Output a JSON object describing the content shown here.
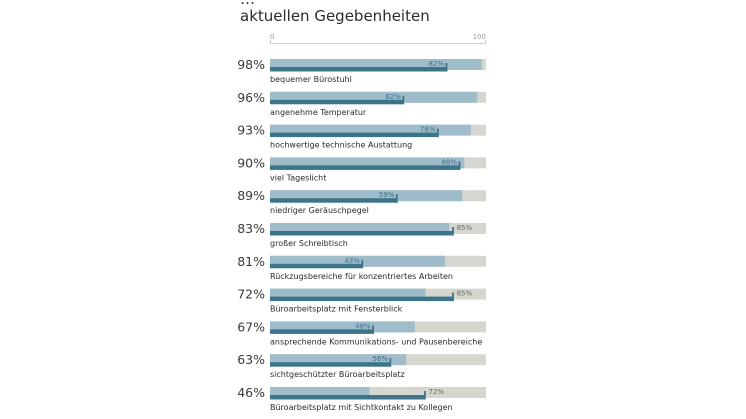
{
  "header": {
    "title_line1": "…",
    "title_line2": "aktuellen Gegebenheiten"
  },
  "chart_data": {
    "type": "bar",
    "xlim": [
      0,
      100
    ],
    "axis_ticks": [
      "0",
      "100"
    ],
    "colors": {
      "track": "#d6d6d0",
      "importance": "#9fbccb",
      "satisfaction": "#3d7489",
      "value_label_inside": "#3b6f86",
      "value_label_outside": "#6a6a6a"
    },
    "rows": [
      {
        "label": "bequemer Bürostuhl",
        "importance": 98,
        "importance_label": "98%",
        "satisfaction": 82,
        "satisfaction_label": "82%"
      },
      {
        "label": "angenehme Temperatur",
        "importance": 96,
        "importance_label": "96%",
        "satisfaction": 62,
        "satisfaction_label": "62%"
      },
      {
        "label": "hochwertige technische Austattung",
        "importance": 93,
        "importance_label": "93%",
        "satisfaction": 78,
        "satisfaction_label": "78%"
      },
      {
        "label": "viel Tageslicht",
        "importance": 90,
        "importance_label": "90%",
        "satisfaction": 88,
        "satisfaction_label": "88%"
      },
      {
        "label": "niedriger Geräuschpegel",
        "importance": 89,
        "importance_label": "89%",
        "satisfaction": 59,
        "satisfaction_label": "59%"
      },
      {
        "label": "großer Schreibtisch",
        "importance": 83,
        "importance_label": "83%",
        "satisfaction": 85,
        "satisfaction_label": "85%"
      },
      {
        "label": "Rückzugsbereiche für konzentriertes Arbeiten",
        "importance": 81,
        "importance_label": "81%",
        "satisfaction": 43,
        "satisfaction_label": "43%"
      },
      {
        "label": "Büroarbeitsplatz mit Fensterblick",
        "importance": 72,
        "importance_label": "72%",
        "satisfaction": 85,
        "satisfaction_label": "85%"
      },
      {
        "label": "ansprechende Kommunikations- und Pausenbereiche",
        "importance": 67,
        "importance_label": "67%",
        "satisfaction": 48,
        "satisfaction_label": "48%"
      },
      {
        "label": "sichtgeschützter Büroarbeitsplatz",
        "importance": 63,
        "importance_label": "63%",
        "satisfaction": 56,
        "satisfaction_label": "56%"
      },
      {
        "label": "Büroarbeitsplatz mit Sichtkontakt zu Kollegen",
        "importance": 46,
        "importance_label": "46%",
        "satisfaction": 72,
        "satisfaction_label": "72%"
      }
    ]
  }
}
